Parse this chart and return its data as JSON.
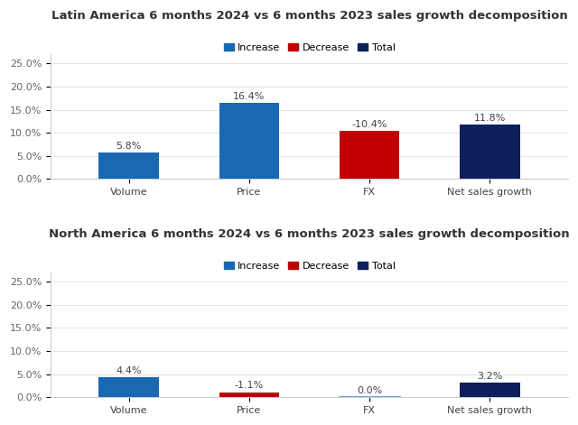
{
  "latin_america": {
    "title": "Latin America 6 months 2024 vs 6 months 2023 sales growth decomposition",
    "categories": [
      "Volume",
      "Price",
      "FX",
      "Net sales growth"
    ],
    "values": [
      5.8,
      16.4,
      -10.4,
      11.8
    ],
    "colors": [
      "#1868B2",
      "#1868B2",
      "#C00000",
      "#0D1F5C"
    ],
    "ylim": [
      0,
      0.27
    ]
  },
  "north_america": {
    "title": "North America 6 months 2024 vs 6 months 2023 sales growth decomposition",
    "categories": [
      "Volume",
      "Price",
      "FX",
      "Net sales growth"
    ],
    "values": [
      4.4,
      -1.1,
      0.0,
      3.2
    ],
    "colors": [
      "#1868B2",
      "#C00000",
      "#5B9BD5",
      "#0D1F5C"
    ],
    "ylim": [
      0,
      0.27
    ]
  },
  "legend_items": [
    {
      "label": "Increase",
      "color": "#1868B2"
    },
    {
      "label": "Decrease",
      "color": "#C00000"
    },
    {
      "label": "Total",
      "color": "#0D1F5C"
    }
  ],
  "bar_width": 0.5,
  "label_fontsize": 8,
  "tick_fontsize": 8,
  "title_fontsize": 9.5,
  "legend_fontsize": 8,
  "bg_color": "#FFFFFF",
  "yticks": [
    0.0,
    0.05,
    0.1,
    0.15,
    0.2,
    0.25
  ],
  "ytick_labels": [
    "0.0%",
    "5.0%",
    "10.0%",
    "15.0%",
    "20.0%",
    "25.0%"
  ]
}
